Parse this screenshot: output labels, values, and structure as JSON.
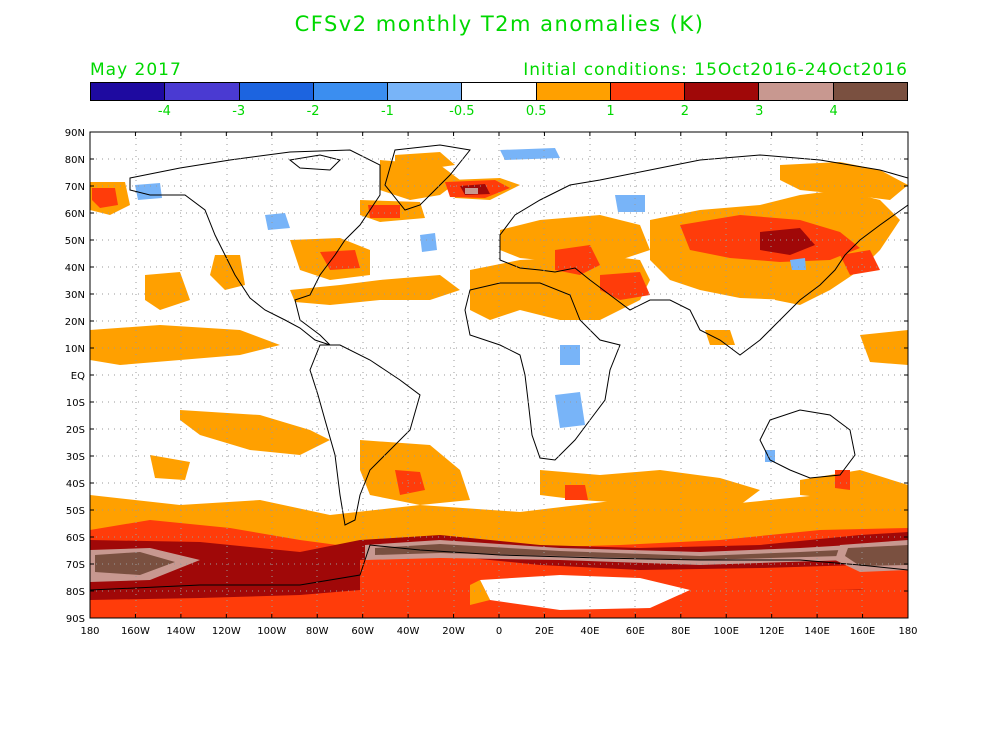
{
  "title": "CFSv2 monthly T2m anomalies (K)",
  "subtitle_left": "May 2017",
  "subtitle_right": "Initial conditions: 15Oct2016-24Oct2016",
  "text_color": "#00d800",
  "colorbar": {
    "colors": [
      "#1e0aa0",
      "#4a3ad2",
      "#1c64e0",
      "#3b8ef0",
      "#78b4f8",
      "#ffffff",
      "#ffa000",
      "#ff3c0a",
      "#a00808",
      "#c89890",
      "#7a5040"
    ],
    "labels": [
      "-4",
      "-3",
      "-2",
      "-1",
      "-0.5",
      "0.5",
      "1",
      "2",
      "3",
      "4"
    ]
  },
  "map": {
    "lat_labels": [
      "90N",
      "80N",
      "70N",
      "60N",
      "50N",
      "40N",
      "30N",
      "20N",
      "10N",
      "EQ",
      "10S",
      "20S",
      "30S",
      "40S",
      "50S",
      "60S",
      "70S",
      "80S",
      "90S"
    ],
    "lon_labels": [
      "180",
      "160W",
      "140W",
      "120W",
      "100W",
      "80W",
      "60W",
      "40W",
      "20W",
      "0",
      "20E",
      "40E",
      "60E",
      "80E",
      "100E",
      "120E",
      "140E",
      "160E",
      "180"
    ]
  }
}
